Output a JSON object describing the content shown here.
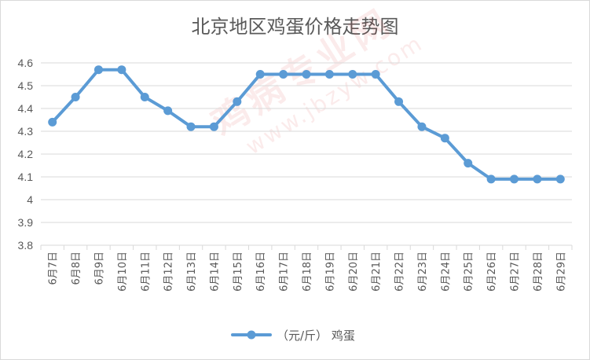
{
  "chart_data": {
    "type": "line",
    "title": "北京地区鸡蛋价格走势图",
    "categories": [
      "6月7日",
      "6月8日",
      "6月9日",
      "6月10日",
      "6月11日",
      "6月12日",
      "6月13日",
      "6月14日",
      "6月15日",
      "6月16日",
      "6月17日",
      "6月18日",
      "6月19日",
      "6月20日",
      "6月21日",
      "6月22日",
      "6月23日",
      "6月24日",
      "6月25日",
      "6月26日",
      "6月27日",
      "6月28日",
      "6月29日"
    ],
    "series": [
      {
        "name": "（元/斤） 鸡蛋",
        "values": [
          4.34,
          4.45,
          4.57,
          4.57,
          4.45,
          4.39,
          4.32,
          4.32,
          4.43,
          4.55,
          4.55,
          4.55,
          4.55,
          4.55,
          4.55,
          4.43,
          4.32,
          4.27,
          4.16,
          4.09,
          4.09,
          4.09,
          4.09
        ]
      }
    ],
    "ylim": [
      3.8,
      4.6
    ],
    "yticks": [
      "3.8",
      "3.9",
      "4",
      "4.1",
      "4.2",
      "4.3",
      "4.4",
      "4.5",
      "4.6"
    ],
    "xlabel": "",
    "ylabel": "",
    "grid": true,
    "legend_position": "bottom",
    "line_color": "#5b9bd5",
    "grid_color": "#d9d9d9"
  },
  "watermark": {
    "main": "鸡病专业网",
    "sub": "www.jbzyw.com"
  }
}
